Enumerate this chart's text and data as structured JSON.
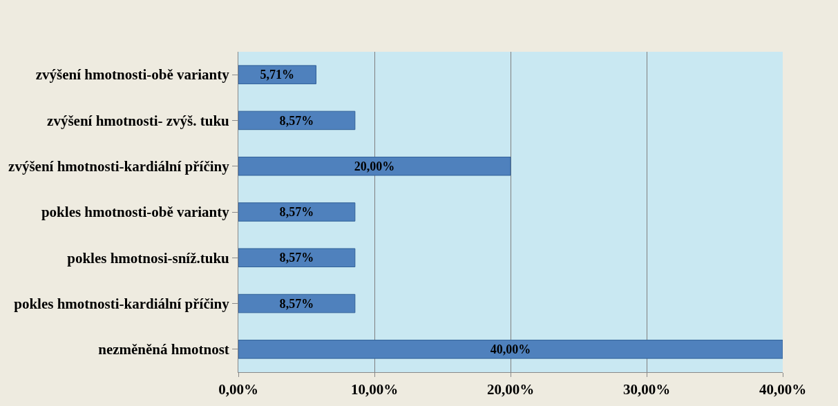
{
  "chart_data": {
    "type": "bar",
    "orientation": "horizontal",
    "categories": [
      "zvýšení hmotnosti-obě varianty",
      "zvýšení hmotnosti- zvýš. tuku",
      "zvýšení hmotnosti-kardiální příčiny",
      "pokles hmotnosti-obě varianty",
      "pokles hmotnosi-sníž.tuku",
      "pokles hmotnosti-kardiální příčiny",
      "nezměněná hmotnost"
    ],
    "values": [
      5.71,
      8.57,
      20,
      8.57,
      8.57,
      8.57,
      40
    ],
    "value_labels": [
      "5,71%",
      "8,57%",
      "20,00%",
      "8,57%",
      "8,57%",
      "8,57%",
      "40,00%"
    ],
    "color": "#4f81bd",
    "xlim": [
      0,
      40
    ],
    "xticks": [
      {
        "value": 0,
        "label": "0,00%"
      },
      {
        "value": 10,
        "label": "10,00%"
      },
      {
        "value": 20,
        "label": "20,00%"
      },
      {
        "value": 30,
        "label": "30,00%"
      },
      {
        "value": 40,
        "label": "40,00%"
      }
    ],
    "grid": "x"
  }
}
